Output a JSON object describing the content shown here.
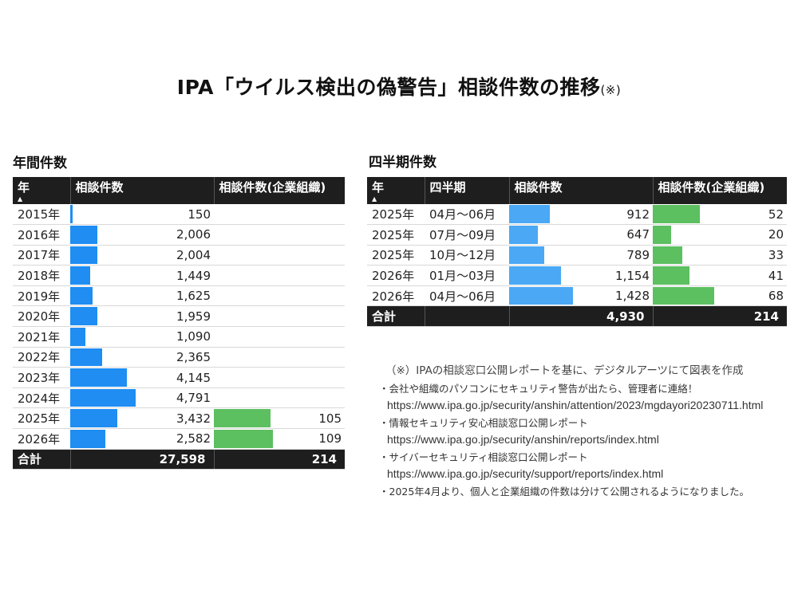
{
  "title": {
    "main": "IPA「ウイルス検出の偽警告」相談件数の推移",
    "note": "(※)"
  },
  "annual": {
    "label": "年間件数",
    "headers": {
      "year": "年",
      "count": "相談件数",
      "corp": "相談件数(企業組織)"
    },
    "sort_icon": "sort-ascending-icon",
    "rows": [
      {
        "year": "2015年",
        "count": "150",
        "corp": ""
      },
      {
        "year": "2016年",
        "count": "2,006",
        "corp": ""
      },
      {
        "year": "2017年",
        "count": "2,004",
        "corp": ""
      },
      {
        "year": "2018年",
        "count": "1,449",
        "corp": ""
      },
      {
        "year": "2019年",
        "count": "1,625",
        "corp": ""
      },
      {
        "year": "2020年",
        "count": "1,959",
        "corp": ""
      },
      {
        "year": "2021年",
        "count": "1,090",
        "corp": ""
      },
      {
        "year": "2022年",
        "count": "2,365",
        "corp": ""
      },
      {
        "year": "2023年",
        "count": "4,145",
        "corp": ""
      },
      {
        "year": "2024年",
        "count": "4,791",
        "corp": ""
      },
      {
        "year": "2025年",
        "count": "3,432",
        "corp": "105"
      },
      {
        "year": "2026年",
        "count": "2,582",
        "corp": "109"
      }
    ],
    "total": {
      "label": "合計",
      "count": "27,598",
      "corp": "214"
    }
  },
  "quarterly": {
    "label": "四半期件数",
    "headers": {
      "year": "年",
      "quarter": "四半期",
      "count": "相談件数",
      "corp": "相談件数(企業組織)"
    },
    "sort_icon": "sort-ascending-icon",
    "rows": [
      {
        "year": "2025年",
        "quarter": "04月～06月",
        "count": "912",
        "corp": "52"
      },
      {
        "year": "2025年",
        "quarter": "07月～09月",
        "count": "647",
        "corp": "20"
      },
      {
        "year": "2025年",
        "quarter": "10月～12月",
        "count": "789",
        "corp": "33"
      },
      {
        "year": "2026年",
        "quarter": "01月～03月",
        "count": "1,154",
        "corp": "41"
      },
      {
        "year": "2026年",
        "quarter": "04月～06月",
        "count": "1,428",
        "corp": "68"
      }
    ],
    "total": {
      "label": "合計",
      "count": "4,930",
      "corp": "214"
    }
  },
  "notes": [
    "（※）IPAの相談窓口公開レポートを基に、デジタルアーツにて図表を作成",
    "・会社や組織のパソコンにセキュリティ警告が出たら、管理者に連絡！",
    "https://www.ipa.go.jp/security/anshin/attention/2023/mgdayori20230711.html",
    "・情報セキュリティ安心相談窓口公開レポート",
    "https://www.ipa.go.jp/security/anshin/reports/index.html",
    "・サイバーセキュリティ相談窓口公開レポート",
    "https://www.ipa.go.jp/security/support/reports/index.html",
    "・2025年4月より、個人と企業組織の件数は分けて公開されるようになりました。"
  ],
  "colors": {
    "count_bar": "#1f8df2",
    "count_bar_light": "#4aa8f5",
    "corp_bar": "#5cbf60",
    "header_bg": "#1e1e1e"
  },
  "chart_data": [
    {
      "type": "table",
      "title": "年間件数",
      "columns": [
        "年",
        "相談件数",
        "相談件数(企業組織)"
      ],
      "categories": [
        "2015年",
        "2016年",
        "2017年",
        "2018年",
        "2019年",
        "2020年",
        "2021年",
        "2022年",
        "2023年",
        "2024年",
        "2025年",
        "2026年"
      ],
      "series": [
        {
          "name": "相談件数",
          "values": [
            150,
            2006,
            2004,
            1449,
            1625,
            1959,
            1090,
            2365,
            4145,
            4791,
            3432,
            2582
          ]
        },
        {
          "name": "相談件数(企業組織)",
          "values": [
            null,
            null,
            null,
            null,
            null,
            null,
            null,
            null,
            null,
            null,
            105,
            109
          ]
        }
      ],
      "total": {
        "相談件数": 27598,
        "相談件数(企業組織)": 214
      }
    },
    {
      "type": "table",
      "title": "四半期件数",
      "columns": [
        "年",
        "四半期",
        "相談件数",
        "相談件数(企業組織)"
      ],
      "categories": [
        "2025年 04月～06月",
        "2025年 07月～09月",
        "2025年 10月～12月",
        "2026年 01月～03月",
        "2026年 04月～06月"
      ],
      "series": [
        {
          "name": "相談件数",
          "values": [
            912,
            647,
            789,
            1154,
            1428
          ]
        },
        {
          "name": "相談件数(企業組織)",
          "values": [
            52,
            20,
            33,
            41,
            68
          ]
        }
      ],
      "total": {
        "相談件数": 4930,
        "相談件数(企業組織)": 214
      }
    }
  ]
}
